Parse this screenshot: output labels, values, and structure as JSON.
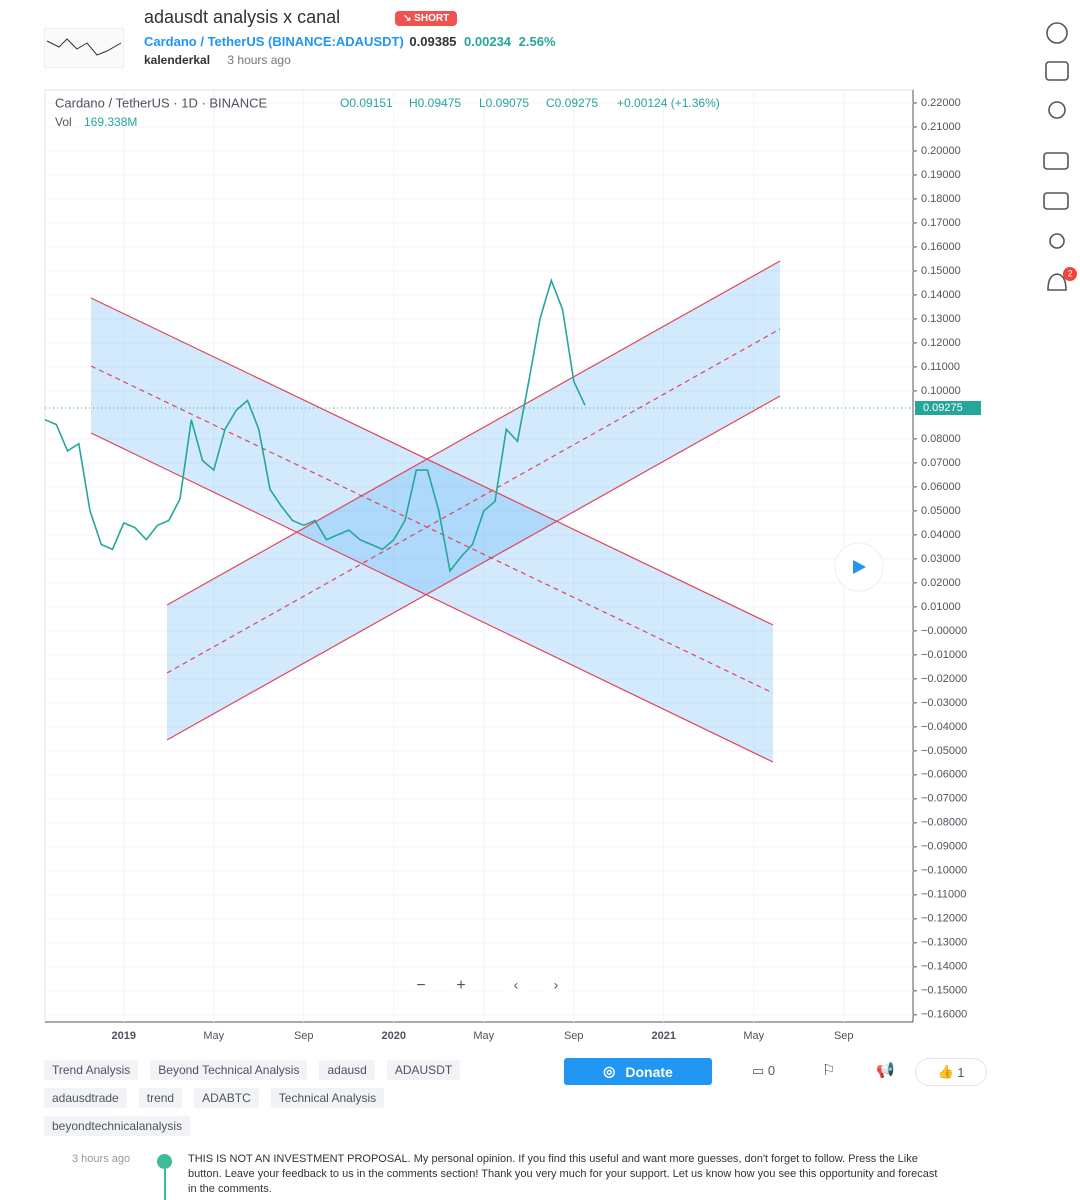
{
  "header": {
    "title": "adausdt analysis x canal",
    "badge": "SHORT",
    "symbol": "Cardano / TetherUS",
    "exchange": "(BINANCE:ADAUSDT)",
    "price": "0.09385",
    "change": "0.00234",
    "change_pct": "2.56%",
    "author": "kalenderkal",
    "time": "3 hours ago"
  },
  "chart_legend": {
    "name": "Cardano / TetherUS · 1D · BINANCE",
    "open": "O0.09151",
    "high": "H0.09475",
    "low": "L0.09075",
    "close": "C0.09275",
    "change": "+0.00124 (+1.36%)",
    "vol_label": "Vol",
    "vol": "169.338M",
    "last_price": "0.09275"
  },
  "chart_data": {
    "type": "line",
    "color": "#26a69a",
    "categories": [
      null,
      null,
      null,
      null,
      null,
      null,
      null,
      "2019",
      null,
      null,
      null,
      null,
      null,
      null,
      null,
      "May",
      null,
      null,
      null,
      null,
      null,
      null,
      null,
      "Sep",
      null,
      null,
      null,
      null,
      null,
      null,
      null,
      "2020",
      null,
      null,
      null,
      null,
      null,
      null,
      null,
      "May",
      null,
      null,
      null,
      null,
      null,
      null,
      null,
      "Sep",
      null,
      null,
      null,
      null,
      null,
      null,
      null,
      "2021",
      null,
      null,
      null,
      null,
      null,
      null,
      null,
      "May",
      null,
      null,
      null,
      null,
      null,
      null,
      null,
      "Sep",
      null,
      null,
      null,
      null,
      null,
      null
    ],
    "values": [
      0.088,
      0.086,
      0.075,
      0.078,
      0.05,
      0.036,
      0.034,
      0.045,
      0.043,
      0.038,
      0.044,
      0.046,
      0.055,
      0.088,
      0.071,
      0.067,
      0.084,
      0.092,
      0.096,
      0.084,
      0.059,
      0.052,
      0.046,
      0.044,
      0.046,
      0.038,
      0.04,
      0.042,
      0.038,
      0.036,
      0.034,
      0.038,
      0.046,
      0.067,
      0.067,
      0.05,
      0.025,
      0.031,
      0.036,
      0.05,
      0.054,
      0.084,
      0.079,
      0.104,
      0.13,
      0.146,
      0.134,
      0.104,
      0.094,
      null,
      null,
      null,
      null,
      null,
      null,
      null,
      null,
      null,
      null,
      null,
      null,
      null,
      null,
      null,
      null,
      null,
      null,
      null,
      null,
      null,
      null,
      null,
      null,
      null,
      null,
      null,
      null,
      null
    ],
    "ylim": [
      -0.163,
      0.2254
    ],
    "yticks": [
      {
        "value": 0.22,
        "label": "0.22000"
      },
      {
        "value": 0.21,
        "label": "0.21000"
      },
      {
        "value": 0.2,
        "label": "0.20000"
      },
      {
        "value": 0.19,
        "label": "0.19000"
      },
      {
        "value": 0.18,
        "label": "0.18000"
      },
      {
        "value": 0.17,
        "label": "0.17000"
      },
      {
        "value": 0.16,
        "label": "0.16000"
      },
      {
        "value": 0.15,
        "label": "0.15000"
      },
      {
        "value": 0.14,
        "label": "0.14000"
      },
      {
        "value": 0.13,
        "label": "0.13000"
      },
      {
        "value": 0.12,
        "label": "0.12000"
      },
      {
        "value": 0.11,
        "label": "0.11000"
      },
      {
        "value": 0.1,
        "label": "0.10000"
      },
      {
        "value": 0.08,
        "label": "0.08000"
      },
      {
        "value": 0.07,
        "label": "0.07000"
      },
      {
        "value": 0.06,
        "label": "0.06000"
      },
      {
        "value": 0.05,
        "label": "0.05000"
      },
      {
        "value": 0.04,
        "label": "0.04000"
      },
      {
        "value": 0.03,
        "label": "0.03000"
      },
      {
        "value": 0.02,
        "label": "0.02000"
      },
      {
        "value": 0.01,
        "label": "0.01000"
      },
      {
        "value": 0,
        "label": "−0.00000"
      },
      {
        "value": -0.01,
        "label": "−0.01000"
      },
      {
        "value": -0.02,
        "label": "−0.02000"
      },
      {
        "value": -0.03,
        "label": "−0.03000"
      },
      {
        "value": -0.04,
        "label": "−0.04000"
      },
      {
        "value": -0.05,
        "label": "−0.05000"
      },
      {
        "value": -0.06,
        "label": "−0.06000"
      },
      {
        "value": -0.07,
        "label": "−0.07000"
      },
      {
        "value": -0.08,
        "label": "−0.08000"
      },
      {
        "value": -0.09,
        "label": "−0.09000"
      },
      {
        "value": -0.1,
        "label": "−0.10000"
      },
      {
        "value": -0.11,
        "label": "−0.11000"
      },
      {
        "value": -0.12,
        "label": "−0.12000"
      },
      {
        "value": -0.13,
        "label": "−0.13000"
      },
      {
        "value": -0.14,
        "label": "−0.14000"
      },
      {
        "value": -0.15,
        "label": "−0.15000"
      },
      {
        "value": -0.16,
        "label": "−0.16000"
      }
    ],
    "grid": true
  },
  "tags": [
    "Trend Analysis",
    "Beyond Technical Analysis",
    "adausd",
    "ADAUSDT",
    "adausdtrade",
    "trend",
    "ADABTC",
    "Technical Analysis",
    "beyondtechnicalanalysis"
  ],
  "actions": {
    "donate": "Donate",
    "comments": "0",
    "likes": "1",
    "notifications": "2"
  },
  "comment": {
    "time": "3 hours ago",
    "text": "THIS IS NOT AN INVESTMENT PROPOSAL. My personal opinion. If you find this useful and want more guesses, don't forget to follow. Press the Like button. Leave your feedback to us in the comments section! Thank you very much for your support. Let us know how you see this opportunity and forecast in the comments."
  }
}
